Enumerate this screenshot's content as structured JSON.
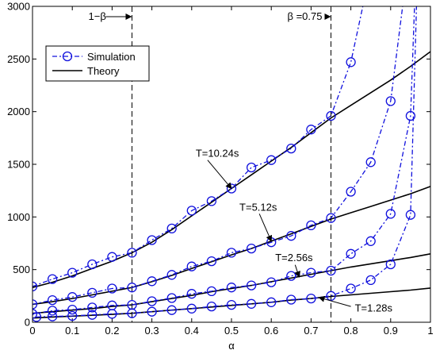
{
  "chart_data": {
    "type": "line",
    "title": "",
    "xlabel": "α",
    "ylabel": "",
    "xlim": [
      0,
      1
    ],
    "ylim": [
      0,
      3000
    ],
    "grid": false,
    "legend_position": "top-left",
    "x_ticks": [
      0,
      0.1,
      0.2,
      0.3,
      0.4,
      0.5,
      0.6,
      0.7,
      0.8,
      0.9,
      1
    ],
    "y_ticks": [
      0,
      500,
      1000,
      1500,
      2000,
      2500,
      3000
    ],
    "legend": {
      "simulation_label": "Simulation",
      "theory_label": "Theory"
    },
    "colors": {
      "simulation": "#1010dd",
      "theory": "#000000"
    },
    "vlines": [
      {
        "x": 0.25,
        "label": "1−β",
        "label_side": "left"
      },
      {
        "x": 0.75,
        "label": "β =0.75",
        "label_side": "left"
      }
    ],
    "series": [
      {
        "name": "T=10.24s",
        "theory": [
          [
            0,
            330
          ],
          [
            0.05,
            380
          ],
          [
            0.1,
            440
          ],
          [
            0.15,
            510
          ],
          [
            0.2,
            580
          ],
          [
            0.25,
            660
          ],
          [
            0.3,
            760
          ],
          [
            0.35,
            880
          ],
          [
            0.4,
            1010
          ],
          [
            0.45,
            1140
          ],
          [
            0.5,
            1270
          ],
          [
            0.55,
            1400
          ],
          [
            0.6,
            1530
          ],
          [
            0.65,
            1660
          ],
          [
            0.7,
            1800
          ],
          [
            0.75,
            1940
          ],
          [
            0.8,
            2060
          ],
          [
            0.85,
            2180
          ],
          [
            0.9,
            2300
          ],
          [
            0.95,
            2430
          ],
          [
            1.0,
            2570
          ]
        ],
        "simulation": [
          [
            0,
            340
          ],
          [
            0.05,
            410
          ],
          [
            0.1,
            470
          ],
          [
            0.15,
            550
          ],
          [
            0.2,
            620
          ],
          [
            0.25,
            660
          ],
          [
            0.3,
            780
          ],
          [
            0.35,
            890
          ],
          [
            0.4,
            1060
          ],
          [
            0.45,
            1150
          ],
          [
            0.5,
            1270
          ],
          [
            0.55,
            1470
          ],
          [
            0.6,
            1540
          ],
          [
            0.65,
            1650
          ],
          [
            0.7,
            1830
          ],
          [
            0.75,
            1960
          ],
          [
            0.8,
            2470
          ],
          [
            0.83,
            3000
          ]
        ]
      },
      {
        "name": "T=5.12s",
        "theory": [
          [
            0,
            170
          ],
          [
            0.05,
            195
          ],
          [
            0.1,
            225
          ],
          [
            0.15,
            260
          ],
          [
            0.2,
            295
          ],
          [
            0.25,
            330
          ],
          [
            0.3,
            385
          ],
          [
            0.35,
            445
          ],
          [
            0.4,
            510
          ],
          [
            0.45,
            575
          ],
          [
            0.5,
            640
          ],
          [
            0.55,
            700
          ],
          [
            0.6,
            770
          ],
          [
            0.65,
            840
          ],
          [
            0.7,
            910
          ],
          [
            0.75,
            980
          ],
          [
            0.8,
            1040
          ],
          [
            0.85,
            1100
          ],
          [
            0.9,
            1160
          ],
          [
            0.95,
            1220
          ],
          [
            1.0,
            1290
          ]
        ],
        "simulation": [
          [
            0,
            170
          ],
          [
            0.05,
            210
          ],
          [
            0.1,
            240
          ],
          [
            0.15,
            280
          ],
          [
            0.2,
            320
          ],
          [
            0.25,
            330
          ],
          [
            0.3,
            390
          ],
          [
            0.35,
            450
          ],
          [
            0.4,
            530
          ],
          [
            0.45,
            580
          ],
          [
            0.5,
            660
          ],
          [
            0.55,
            700
          ],
          [
            0.6,
            760
          ],
          [
            0.65,
            820
          ],
          [
            0.7,
            920
          ],
          [
            0.75,
            990
          ],
          [
            0.8,
            1240
          ],
          [
            0.85,
            1520
          ],
          [
            0.9,
            2100
          ],
          [
            0.93,
            3000
          ]
        ]
      },
      {
        "name": "T=2.56s",
        "theory": [
          [
            0,
            85
          ],
          [
            0.05,
            100
          ],
          [
            0.1,
            115
          ],
          [
            0.15,
            130
          ],
          [
            0.2,
            150
          ],
          [
            0.25,
            165
          ],
          [
            0.3,
            195
          ],
          [
            0.35,
            225
          ],
          [
            0.4,
            255
          ],
          [
            0.45,
            290
          ],
          [
            0.5,
            320
          ],
          [
            0.55,
            350
          ],
          [
            0.6,
            385
          ],
          [
            0.65,
            420
          ],
          [
            0.7,
            455
          ],
          [
            0.75,
            490
          ],
          [
            0.8,
            525
          ],
          [
            0.85,
            555
          ],
          [
            0.9,
            585
          ],
          [
            0.95,
            615
          ],
          [
            1.0,
            650
          ]
        ],
        "simulation": [
          [
            0,
            80
          ],
          [
            0.05,
            110
          ],
          [
            0.1,
            120
          ],
          [
            0.15,
            140
          ],
          [
            0.2,
            160
          ],
          [
            0.25,
            165
          ],
          [
            0.3,
            200
          ],
          [
            0.35,
            230
          ],
          [
            0.4,
            270
          ],
          [
            0.45,
            295
          ],
          [
            0.5,
            330
          ],
          [
            0.55,
            350
          ],
          [
            0.6,
            380
          ],
          [
            0.65,
            440
          ],
          [
            0.7,
            470
          ],
          [
            0.75,
            490
          ],
          [
            0.8,
            650
          ],
          [
            0.85,
            770
          ],
          [
            0.9,
            1030
          ],
          [
            0.95,
            1960
          ],
          [
            0.96,
            3000
          ]
        ]
      },
      {
        "name": "T=1.28s",
        "theory": [
          [
            0,
            40
          ],
          [
            0.05,
            50
          ],
          [
            0.1,
            58
          ],
          [
            0.15,
            66
          ],
          [
            0.2,
            75
          ],
          [
            0.25,
            85
          ],
          [
            0.3,
            100
          ],
          [
            0.35,
            115
          ],
          [
            0.4,
            130
          ],
          [
            0.45,
            145
          ],
          [
            0.5,
            160
          ],
          [
            0.55,
            175
          ],
          [
            0.6,
            190
          ],
          [
            0.65,
            210
          ],
          [
            0.7,
            225
          ],
          [
            0.75,
            245
          ],
          [
            0.8,
            260
          ],
          [
            0.85,
            275
          ],
          [
            0.9,
            290
          ],
          [
            0.95,
            305
          ],
          [
            1.0,
            325
          ]
        ],
        "simulation": [
          [
            0.01,
            50
          ],
          [
            0.05,
            55
          ],
          [
            0.1,
            60
          ],
          [
            0.15,
            70
          ],
          [
            0.2,
            80
          ],
          [
            0.25,
            85
          ],
          [
            0.3,
            100
          ],
          [
            0.35,
            115
          ],
          [
            0.4,
            130
          ],
          [
            0.45,
            150
          ],
          [
            0.5,
            165
          ],
          [
            0.55,
            175
          ],
          [
            0.6,
            190
          ],
          [
            0.65,
            215
          ],
          [
            0.7,
            225
          ],
          [
            0.75,
            250
          ],
          [
            0.8,
            320
          ],
          [
            0.85,
            400
          ],
          [
            0.9,
            550
          ],
          [
            0.95,
            1020
          ],
          [
            0.965,
            3000
          ]
        ]
      }
    ],
    "annotations": [
      {
        "text": "T=10.24s",
        "for": "T=10.24s",
        "target": [
          0.5,
          1270
        ]
      },
      {
        "text": "T=5.12s",
        "for": "T=5.12s",
        "target": [
          0.6,
          770
        ]
      },
      {
        "text": "T=2.56s",
        "for": "T=2.56s",
        "target": [
          0.67,
          430
        ]
      },
      {
        "text": "T=1.28s",
        "for": "T=1.28s",
        "target": [
          0.72,
          235
        ]
      }
    ]
  }
}
